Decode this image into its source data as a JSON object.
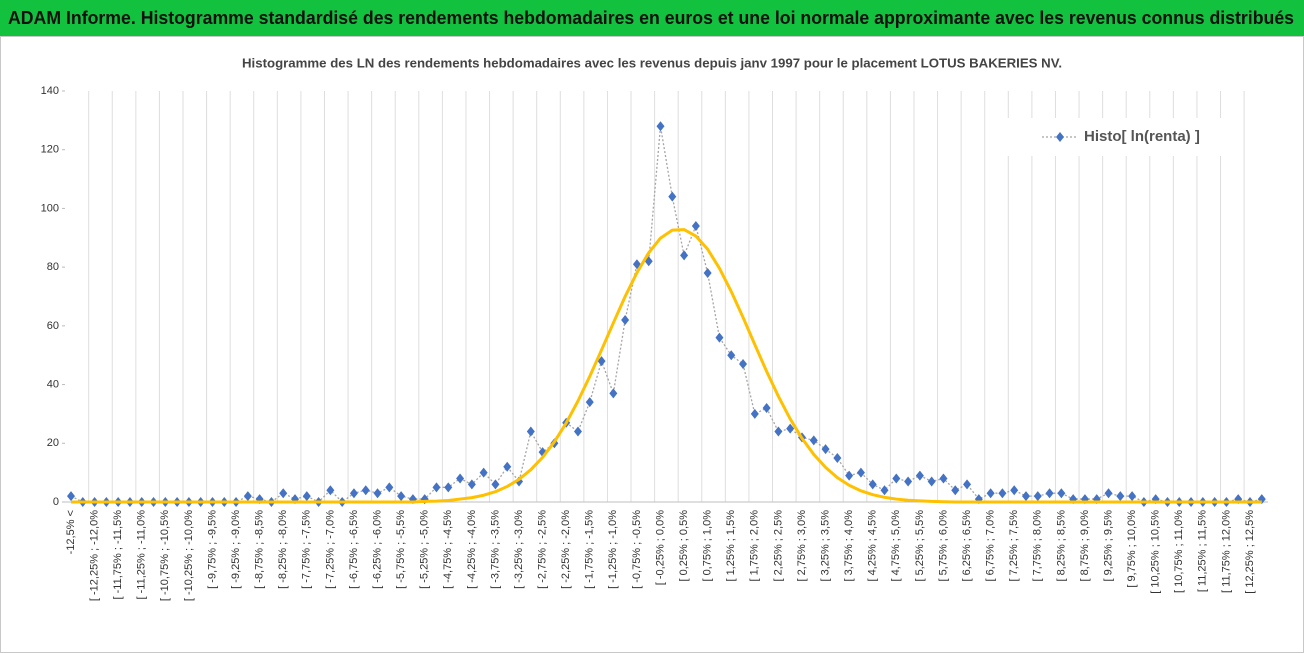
{
  "chart_data": {
    "type": "line",
    "title": "ADAM Informe. Histogramme standardisé des rendements hebdomadaires en euros et une loi normale approximante avec les revenus connus distribués",
    "subtitle": "Histogramme des LN des rendements hebdomadaires avec les revenus depuis janv 1997 pour le placement LOTUS BAKERIES NV.",
    "categories": [
      "-12,5% <",
      null,
      "[ -12,25% ; -12,0%",
      null,
      "[ -11,75% ; -11,5%",
      null,
      "[ -11,25% ; -11,0%",
      null,
      "[ -10,75% ; -10,5%",
      null,
      "[ -10,25% ; -10,0%",
      null,
      "[ -9,75% ; -9,5%",
      null,
      "[ -9,25% ; -9,0%",
      null,
      "[ -8,75% ; -8,5%",
      null,
      "[ -8,25% ; -8,0%",
      null,
      "[ -7,75% ; -7,5%",
      null,
      "[ -7,25% ; -7,0%",
      null,
      "[ -6,75% ; -6,5%",
      null,
      "[ -6,25% ; -6,0%",
      null,
      "[ -5,75% ; -5,5%",
      null,
      "[ -5,25% ; -5,0%",
      null,
      "[ -4,75% ; -4,5%",
      null,
      "[ -4,25% ; -4,0%",
      null,
      "[ -3,75% ; -3,5%",
      null,
      "[ -3,25% ; -3,0%",
      null,
      "[ -2,75% ; -2,5%",
      null,
      "[ -2,25% ; -2,0%",
      null,
      "[ -1,75% ; -1,5%",
      null,
      "[ -1,25% ; -1,0%",
      null,
      "[ -0,75% ; -0,5%",
      null,
      "[ -0,25% ; 0,0%",
      null,
      "[ 0,25% ; 0,5%",
      null,
      "[ 0,75% ; 1,0%",
      null,
      "[ 1,25% ; 1,5%",
      null,
      "[ 1,75% ; 2,0%",
      null,
      "[ 2,25% ; 2,5%",
      null,
      "[ 2,75% ; 3,0%",
      null,
      "[ 3,25% ; 3,5%",
      null,
      "[ 3,75% ; 4,0%",
      null,
      "[ 4,25% ; 4,5%",
      null,
      "[ 4,75% ; 5,0%",
      null,
      "[ 5,25% ; 5,5%",
      null,
      "[ 5,75% ; 6,0%",
      null,
      "[ 6,25% ; 6,5%",
      null,
      "[ 6,75% ; 7,0%",
      null,
      "[ 7,25% ; 7,5%",
      null,
      "[ 7,75% ; 8,0%",
      null,
      "[ 8,25% ; 8,5%",
      null,
      "[ 8,75% ; 9,0%",
      null,
      "[ 9,25% ; 9,5%",
      null,
      "[ 9,75% ; 10,0%",
      null,
      "[ 10,25% ; 10,5%",
      null,
      "[ 10,75% ; 11,0%",
      null,
      "[ 11,25% ; 11,5%",
      null,
      "[ 11,75% ; 12,0%",
      null,
      "[ 12,25% ; 12,5%",
      null
    ],
    "series": [
      {
        "name": "Histo[ ln(renta) ]",
        "color": "#4472c4",
        "values": [
          2,
          0,
          0,
          0,
          0,
          0,
          0,
          0,
          0,
          0,
          0,
          0,
          0,
          0,
          0,
          2,
          1,
          0,
          3,
          1,
          2,
          0,
          4,
          0,
          3,
          4,
          3,
          5,
          2,
          1,
          1,
          5,
          5,
          8,
          6,
          10,
          6,
          12,
          7,
          24,
          17,
          20,
          27,
          24,
          34,
          48,
          37,
          62,
          81,
          82,
          128,
          104,
          84,
          94,
          78,
          56,
          50,
          47,
          30,
          32,
          24,
          25,
          22,
          21,
          18,
          15,
          9,
          10,
          6,
          4,
          8,
          7,
          9,
          7,
          8,
          4,
          6,
          1,
          3,
          3,
          4,
          2,
          2,
          3,
          3,
          1,
          1,
          1,
          3,
          2,
          2,
          0,
          1,
          0,
          0,
          0,
          0,
          0,
          0,
          1,
          0,
          1
        ]
      },
      {
        "color": "#ffc000",
        "values": [
          0,
          0,
          0,
          0,
          0,
          0,
          0,
          0,
          0,
          0,
          0,
          0,
          0,
          0,
          0,
          0,
          0,
          0,
          0,
          0,
          0,
          0,
          0,
          0,
          0,
          0,
          0,
          0,
          0,
          0,
          0.2,
          0.3,
          0.5,
          1.0,
          1.5,
          2.3,
          3.5,
          5.3,
          7.7,
          11.0,
          15.2,
          20.5,
          26.9,
          34.4,
          42.8,
          51.8,
          61.0,
          70.0,
          78.1,
          84.9,
          89.9,
          92.6,
          92.8,
          90.6,
          86.1,
          79.6,
          71.7,
          62.9,
          53.6,
          44.5,
          36.0,
          28.3,
          21.7,
          16.2,
          11.8,
          8.3,
          5.7,
          3.8,
          2.5,
          1.6,
          1.0,
          0.6,
          0.4,
          0.2,
          0.1,
          0,
          0,
          0,
          0,
          0,
          0,
          0,
          0,
          0,
          0,
          0,
          0,
          0,
          0,
          0,
          0,
          0,
          0,
          0,
          0,
          0,
          0,
          0,
          0,
          0,
          0,
          0
        ]
      }
    ],
    "ylim": [
      0,
      140
    ],
    "yticks": [
      0,
      20,
      40,
      60,
      80,
      100,
      120,
      140
    ],
    "grid": "x",
    "legend": "top-right"
  }
}
